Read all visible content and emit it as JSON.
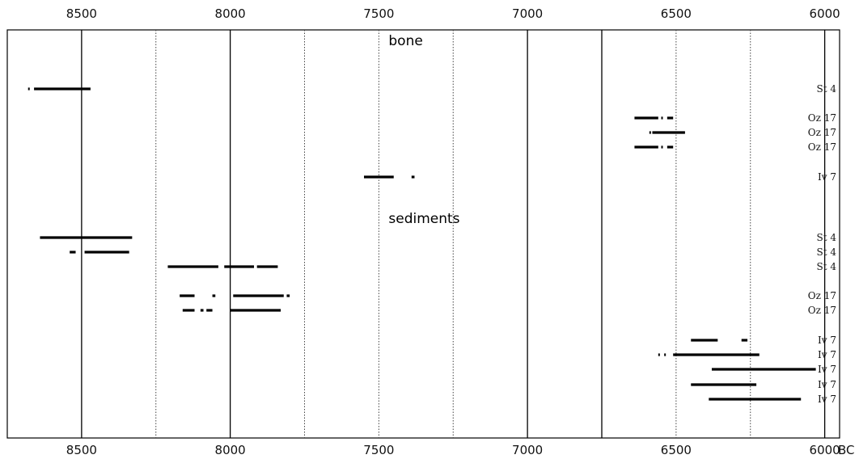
{
  "chart_data": {
    "type": "range",
    "title": "",
    "xlabel": "BC",
    "ylabel": "",
    "x_reversed": true,
    "xlim": [
      8750,
      5950
    ],
    "major_ticks": [
      8500,
      8000,
      7500,
      7000,
      6500,
      6000
    ],
    "tick_labels": [
      "8500",
      "8000",
      "7500",
      "7000",
      "6500",
      "6000"
    ],
    "solid_gridlines": [
      8500,
      8000,
      7000,
      6750,
      6000
    ],
    "dotted_gridlines": [
      8250,
      7750,
      7500,
      7250,
      6500,
      6250
    ],
    "grid": true,
    "sections": [
      {
        "label": "bone",
        "rows": [
          {
            "label": "St 4",
            "segments": [
              [
                8680,
                8678
              ],
              [
                8660,
                8470
              ]
            ]
          },
          {
            "label": "Oz 17",
            "segments": [
              [
                6640,
                6560
              ],
              [
                6550,
                6545
              ],
              [
                6530,
                6510
              ]
            ]
          },
          {
            "label": "Oz 17",
            "segments": [
              [
                6590,
                6585
              ],
              [
                6580,
                6470
              ]
            ]
          },
          {
            "label": "Oz 17",
            "segments": [
              [
                6640,
                6560
              ],
              [
                6550,
                6545
              ],
              [
                6530,
                6510
              ]
            ]
          },
          {
            "label": "Iv 7",
            "segments": [
              [
                7550,
                7450
              ],
              [
                7390,
                7380
              ]
            ]
          }
        ]
      },
      {
        "label": "sediments",
        "rows": [
          {
            "label": "St 4",
            "segments": [
              [
                8640,
                8330
              ]
            ]
          },
          {
            "label": "St 4",
            "segments": [
              [
                8540,
                8520
              ],
              [
                8490,
                8340
              ]
            ]
          },
          {
            "label": "St 4",
            "segments": [
              [
                8210,
                8040
              ],
              [
                8020,
                7920
              ],
              [
                7910,
                7840
              ]
            ]
          },
          {
            "label": "Oz 17",
            "segments": [
              [
                8170,
                8120
              ],
              [
                8060,
                8050
              ],
              [
                7990,
                7820
              ],
              [
                7810,
                7800
              ]
            ]
          },
          {
            "label": "Oz 17",
            "segments": [
              [
                8160,
                8120
              ],
              [
                8100,
                8090
              ],
              [
                8080,
                8060
              ],
              [
                8000,
                7830
              ]
            ]
          },
          {
            "label": "Iv 7",
            "segments": [
              [
                6450,
                6360
              ],
              [
                6280,
                6260
              ]
            ]
          },
          {
            "label": "Iv 7",
            "segments": [
              [
                6560,
                6555
              ],
              [
                6540,
                6535
              ],
              [
                6510,
                6220
              ]
            ]
          },
          {
            "label": "Iv 7",
            "segments": [
              [
                6380,
                6030
              ]
            ]
          },
          {
            "label": "Iv 7",
            "segments": [
              [
                6450,
                6230
              ]
            ]
          },
          {
            "label": "Iv 7",
            "segments": [
              [
                6390,
                6080
              ]
            ]
          }
        ]
      }
    ]
  }
}
